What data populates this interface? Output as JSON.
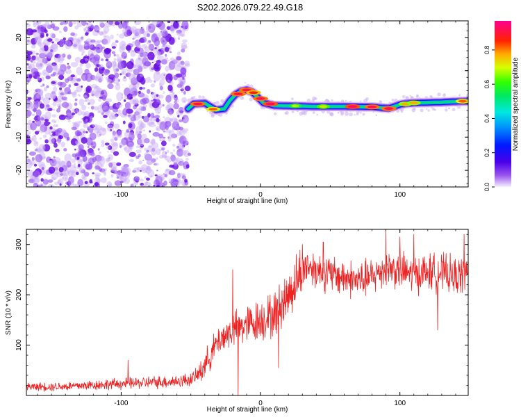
{
  "title": "S202.2026.079.22.49.G18",
  "colors": {
    "snr_line": "#ee2222",
    "noise_dot": "#8f3ef0",
    "axis": "#000000"
  },
  "colorbar": {
    "label": "Normalized spectral amplitude",
    "ticks": [
      "0.0",
      "0.2",
      "0.4",
      "0.6",
      "0.8"
    ],
    "tick_values": [
      0.0,
      0.2,
      0.4,
      0.6,
      0.8
    ],
    "range": [
      0.0,
      0.97
    ]
  },
  "chart_data": [
    {
      "type": "heatmap",
      "title": "S202.2026.079.22.49.G18",
      "xlabel": "Height of straight line (km)",
      "ylabel": "Frequency (Hz)",
      "xlim": [
        -168,
        149
      ],
      "ylim": [
        -25,
        25
      ],
      "xticks": [
        -100,
        0,
        100
      ],
      "xtick_labels": [
        "-100",
        "0",
        "100"
      ],
      "yticks": [
        -20,
        -10,
        0,
        10,
        20
      ],
      "ytick_labels": [
        "-20",
        "-10",
        "0",
        "10",
        "20"
      ],
      "noise_region_x": [
        -168,
        -52
      ],
      "ridge": {
        "x": [
          -52,
          -48,
          -40,
          -32,
          -26,
          -22,
          -18,
          -14,
          -10,
          -6,
          -2,
          2,
          6,
          10,
          20,
          40,
          60,
          80,
          88,
          92,
          96,
          100,
          104,
          110,
          120,
          130,
          140,
          149
        ],
        "y": [
          -1.5,
          0,
          0.2,
          -1.8,
          -1.5,
          1,
          2.8,
          3.8,
          4.2,
          3.6,
          2,
          0.3,
          -0.1,
          -0.5,
          -0.6,
          -0.8,
          -0.8,
          -0.9,
          -1.2,
          -1.3,
          -0.8,
          -0.2,
          0.1,
          0.3,
          0.4,
          0.5,
          0.7,
          0.8
        ]
      },
      "ridge_peaks": [
        {
          "x": -45,
          "y": 0,
          "amp": 0.95
        },
        {
          "x": -34,
          "y": -1.6,
          "amp": 0.85
        },
        {
          "x": -16,
          "y": 3.0,
          "amp": 0.95
        },
        {
          "x": -10,
          "y": 4.2,
          "amp": 0.95
        },
        {
          "x": -5,
          "y": 3.4,
          "amp": 0.9
        },
        {
          "x": 0,
          "y": 1.6,
          "amp": 0.95
        },
        {
          "x": 7,
          "y": 0.0,
          "amp": 0.97
        },
        {
          "x": 25,
          "y": -0.6,
          "amp": 0.7
        },
        {
          "x": 45,
          "y": -0.8,
          "amp": 0.75
        },
        {
          "x": 66,
          "y": -0.8,
          "amp": 0.97
        },
        {
          "x": 80,
          "y": -0.9,
          "amp": 0.95
        },
        {
          "x": 92,
          "y": -1.4,
          "amp": 0.95
        },
        {
          "x": 104,
          "y": 0.0,
          "amp": 0.8
        },
        {
          "x": 110,
          "y": 0.3,
          "amp": 0.8
        },
        {
          "x": 145,
          "y": 0.8,
          "amp": 0.85
        }
      ]
    },
    {
      "type": "line",
      "xlabel": "Height of straight line (km)",
      "ylabel": "SNR (10 * v/v)",
      "xlim": [
        -168,
        149
      ],
      "ylim": [
        0,
        330
      ],
      "xticks": [
        -100,
        0,
        100
      ],
      "xtick_labels": [
        "-100",
        "0",
        "100"
      ],
      "yticks": [
        100,
        200,
        300
      ],
      "ytick_labels": [
        "100",
        "200",
        "300"
      ],
      "series": [
        {
          "name": "SNR",
          "trend_x": [
            -168,
            -140,
            -110,
            -80,
            -60,
            -50,
            -45,
            -38,
            -30,
            -20,
            -10,
            0,
            10,
            20,
            28,
            33,
            40,
            50,
            60,
            70,
            80,
            90,
            100,
            110,
            120,
            130,
            140,
            149
          ],
          "trend_y": [
            17,
            18,
            22,
            26,
            28,
            32,
            40,
            70,
            110,
            130,
            140,
            150,
            160,
            200,
            240,
            260,
            250,
            240,
            235,
            228,
            235,
            255,
            248,
            240,
            245,
            245,
            235,
            245
          ],
          "spikes": [
            {
              "x": -95,
              "y": 70
            },
            {
              "x": -20,
              "y": 250
            },
            {
              "x": -16,
              "y": 0
            },
            {
              "x": 13,
              "y": 55
            },
            {
              "x": 30,
              "y": 300
            },
            {
              "x": 45,
              "y": 305
            },
            {
              "x": 90,
              "y": 330
            },
            {
              "x": 100,
              "y": 315
            },
            {
              "x": 110,
              "y": 320
            },
            {
              "x": 127,
              "y": 130
            },
            {
              "x": 146,
              "y": 320
            }
          ]
        }
      ]
    }
  ]
}
